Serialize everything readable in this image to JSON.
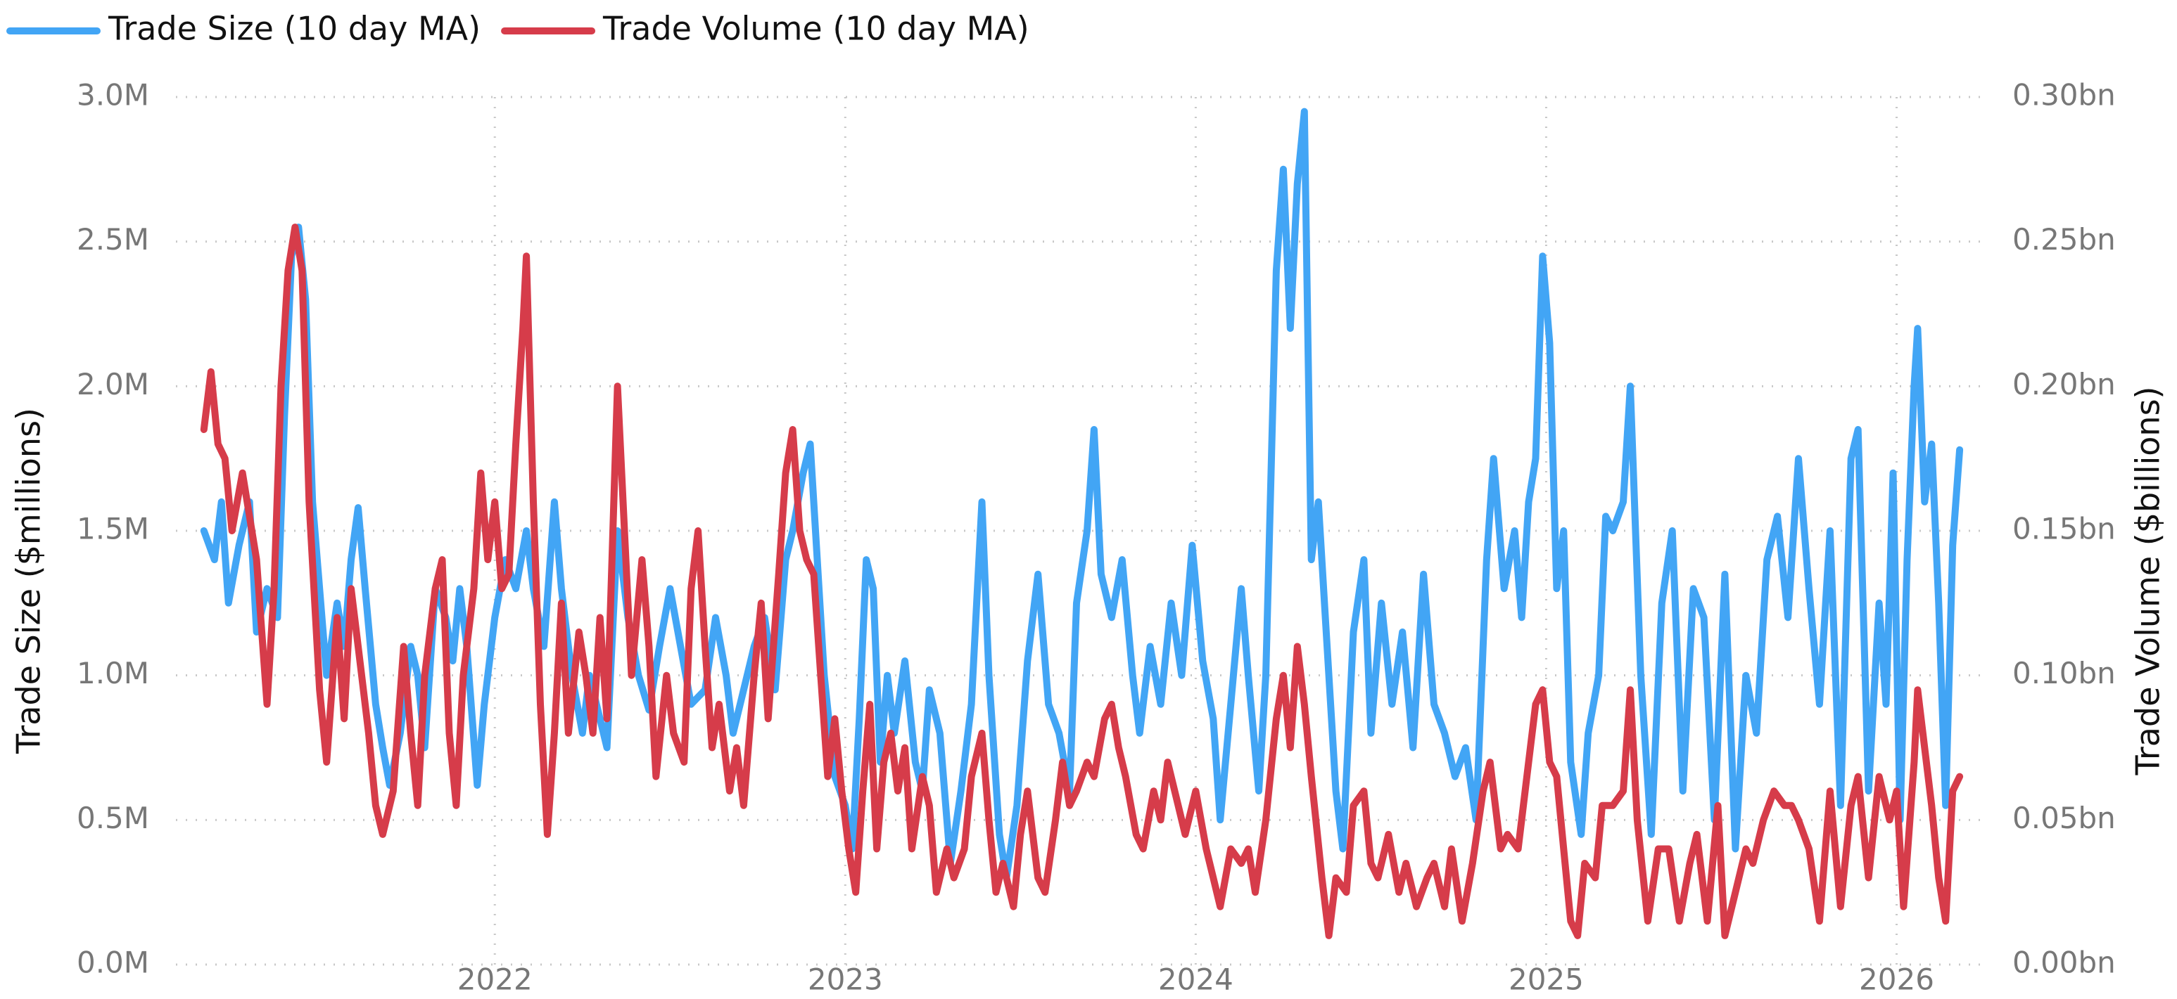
{
  "chart_data": {
    "type": "line",
    "y_label": "Trade Size ($millions)",
    "y2_label": "Trade Volume ($billions)",
    "legend": "top-left",
    "grid": true,
    "xlim": [
      2021.09,
      2026.25
    ],
    "xticks": [
      2022,
      2023,
      2024,
      2025,
      2026
    ],
    "ylim": [
      0,
      3.0
    ],
    "yticks": [
      {
        "value": 0,
        "label": "0.0M"
      },
      {
        "value": 0.5,
        "label": "0.5M"
      },
      {
        "value": 1.0,
        "label": "1.0M"
      },
      {
        "value": 1.5,
        "label": "1.5M"
      },
      {
        "value": 2.0,
        "label": "2.0M"
      },
      {
        "value": 2.5,
        "label": "2.5M"
      },
      {
        "value": 3.0,
        "label": "3.0M"
      }
    ],
    "y2lim": [
      0,
      0.3
    ],
    "y2ticks": [
      {
        "value": 0,
        "label": "0.00bn"
      },
      {
        "value": 0.05,
        "label": "0.05bn"
      },
      {
        "value": 0.1,
        "label": "0.10bn"
      },
      {
        "value": 0.15,
        "label": "0.15bn"
      },
      {
        "value": 0.2,
        "label": "0.20bn"
      },
      {
        "value": 0.25,
        "label": "0.25bn"
      },
      {
        "value": 0.3,
        "label": "0.30bn"
      }
    ],
    "series": [
      {
        "name": "Trade Size (10 day MA)",
        "color": "#42a5f5",
        "axis": "y",
        "x": [
          2021.17,
          2021.2,
          2021.22,
          2021.24,
          2021.27,
          2021.3,
          2021.32,
          2021.35,
          2021.38,
          2021.4,
          2021.42,
          2021.44,
          2021.46,
          2021.48,
          2021.5,
          2021.52,
          2021.55,
          2021.57,
          2021.59,
          2021.61,
          2021.63,
          2021.66,
          2021.68,
          2021.7,
          2021.73,
          2021.76,
          2021.78,
          2021.8,
          2021.83,
          2021.86,
          2021.88,
          2021.9,
          2021.92,
          2021.95,
          2021.97,
          2022.0,
          2022.03,
          2022.06,
          2022.09,
          2022.11,
          2022.14,
          2022.17,
          2022.19,
          2022.22,
          2022.25,
          2022.27,
          2022.3,
          2022.32,
          2022.35,
          2022.38,
          2022.41,
          2022.44,
          2022.47,
          2022.5,
          2022.53,
          2022.56,
          2022.6,
          2022.63,
          2022.66,
          2022.68,
          2022.71,
          2022.74,
          2022.77,
          2022.8,
          2022.83,
          2022.85,
          2022.88,
          2022.9,
          2022.92,
          2022.94,
          2022.97,
          2023.0,
          2023.02,
          2023.04,
          2023.06,
          2023.08,
          2023.1,
          2023.12,
          2023.14,
          2023.17,
          2023.2,
          2023.22,
          2023.24,
          2023.27,
          2023.3,
          2023.33,
          2023.36,
          2023.39,
          2023.41,
          2023.44,
          2023.46,
          2023.49,
          2023.52,
          2023.55,
          2023.58,
          2023.61,
          2023.64,
          2023.66,
          2023.69,
          2023.71,
          2023.73,
          2023.76,
          2023.79,
          2023.82,
          2023.84,
          2023.87,
          2023.9,
          2023.93,
          2023.96,
          2023.99,
          2024.02,
          2024.05,
          2024.07,
          2024.1,
          2024.13,
          2024.15,
          2024.18,
          2024.2,
          2024.23,
          2024.25,
          2024.27,
          2024.29,
          2024.31,
          2024.33,
          2024.35,
          2024.37,
          2024.4,
          2024.42,
          2024.45,
          2024.48,
          2024.5,
          2024.53,
          2024.56,
          2024.59,
          2024.62,
          2024.65,
          2024.68,
          2024.71,
          2024.74,
          2024.77,
          2024.8,
          2024.83,
          2024.85,
          2024.88,
          2024.91,
          2024.93,
          2024.95,
          2024.97,
          2024.99,
          2025.01,
          2025.03,
          2025.05,
          2025.07,
          2025.1,
          2025.12,
          2025.15,
          2025.17,
          2025.19,
          2025.22,
          2025.24,
          2025.27,
          2025.3,
          2025.33,
          2025.36,
          2025.39,
          2025.42,
          2025.45,
          2025.48,
          2025.51,
          2025.54,
          2025.57,
          2025.6,
          2025.63,
          2025.66,
          2025.69,
          2025.72,
          2025.75,
          2025.78,
          2025.81,
          2025.84,
          2025.87,
          2025.89,
          2025.92,
          2025.95,
          2025.97,
          2025.99,
          2026.01,
          2026.03,
          2026.05,
          2026.06,
          2026.08,
          2026.1,
          2026.12,
          2026.14,
          2026.16,
          2026.18
        ],
        "values": [
          1.5,
          1.4,
          1.6,
          1.25,
          1.45,
          1.6,
          1.15,
          1.3,
          1.2,
          1.9,
          2.45,
          2.55,
          2.3,
          1.6,
          1.3,
          1.0,
          1.25,
          1.1,
          1.4,
          1.58,
          1.3,
          0.9,
          0.75,
          0.62,
          0.8,
          1.1,
          1.0,
          0.75,
          1.3,
          1.2,
          1.05,
          1.3,
          1.1,
          0.62,
          0.9,
          1.2,
          1.4,
          1.3,
          1.5,
          1.3,
          1.1,
          1.6,
          1.3,
          1.0,
          0.8,
          1.0,
          0.85,
          0.75,
          1.5,
          1.2,
          1.0,
          0.88,
          1.1,
          1.3,
          1.1,
          0.9,
          0.95,
          1.2,
          1.0,
          0.8,
          0.95,
          1.1,
          1.2,
          0.95,
          1.4,
          1.5,
          1.7,
          1.8,
          1.4,
          1.0,
          0.65,
          0.55,
          0.4,
          0.85,
          1.4,
          1.3,
          0.7,
          1.0,
          0.8,
          1.05,
          0.7,
          0.6,
          0.95,
          0.8,
          0.35,
          0.6,
          0.9,
          1.6,
          1.0,
          0.45,
          0.3,
          0.55,
          1.05,
          1.35,
          0.9,
          0.8,
          0.6,
          1.25,
          1.5,
          1.85,
          1.35,
          1.2,
          1.4,
          1.0,
          0.8,
          1.1,
          0.9,
          1.25,
          1.0,
          1.45,
          1.05,
          0.85,
          0.5,
          0.9,
          1.3,
          1.0,
          0.6,
          1.0,
          2.4,
          2.75,
          2.2,
          2.7,
          2.95,
          1.4,
          1.6,
          1.2,
          0.6,
          0.4,
          1.15,
          1.4,
          0.8,
          1.25,
          0.9,
          1.15,
          0.75,
          1.35,
          0.9,
          0.8,
          0.65,
          0.75,
          0.5,
          1.4,
          1.75,
          1.3,
          1.5,
          1.2,
          1.6,
          1.75,
          2.45,
          2.15,
          1.3,
          1.5,
          0.7,
          0.45,
          0.8,
          1.0,
          1.55,
          1.5,
          1.6,
          2.0,
          1.0,
          0.45,
          1.25,
          1.5,
          0.6,
          1.3,
          1.2,
          0.5,
          1.35,
          0.4,
          1.0,
          0.8,
          1.4,
          1.55,
          1.2,
          1.75,
          1.3,
          0.9,
          1.5,
          0.55,
          1.75,
          1.85,
          0.6,
          1.25,
          0.9,
          1.7,
          0.5,
          1.4,
          2.0,
          2.2,
          1.6,
          1.8,
          1.25,
          0.55,
          1.45,
          1.78
        ]
      },
      {
        "name": "Trade Volume (10 day MA)",
        "color": "#d63c4a",
        "axis": "y2",
        "x": [
          2021.17,
          2021.19,
          2021.21,
          2021.23,
          2021.25,
          2021.28,
          2021.3,
          2021.32,
          2021.35,
          2021.37,
          2021.39,
          2021.41,
          2021.43,
          2021.45,
          2021.47,
          2021.5,
          2021.52,
          2021.55,
          2021.57,
          2021.59,
          2021.61,
          2021.64,
          2021.66,
          2021.68,
          2021.71,
          2021.74,
          2021.76,
          2021.78,
          2021.8,
          2021.83,
          2021.85,
          2021.87,
          2021.89,
          2021.91,
          2021.94,
          2021.96,
          2021.98,
          2022.0,
          2022.02,
          2022.04,
          2022.06,
          2022.08,
          2022.09,
          2022.11,
          2022.13,
          2022.15,
          2022.17,
          2022.19,
          2022.21,
          2022.24,
          2022.26,
          2022.28,
          2022.3,
          2022.32,
          2022.35,
          2022.37,
          2022.39,
          2022.42,
          2022.44,
          2022.46,
          2022.49,
          2022.51,
          2022.54,
          2022.56,
          2022.58,
          2022.6,
          2022.62,
          2022.64,
          2022.67,
          2022.69,
          2022.71,
          2022.74,
          2022.76,
          2022.78,
          2022.81,
          2022.83,
          2022.85,
          2022.87,
          2022.89,
          2022.91,
          2022.93,
          2022.95,
          2022.97,
          2022.99,
          2023.01,
          2023.03,
          2023.05,
          2023.07,
          2023.09,
          2023.11,
          2023.13,
          2023.15,
          2023.17,
          2023.19,
          2023.22,
          2023.24,
          2023.26,
          2023.29,
          2023.31,
          2023.34,
          2023.36,
          2023.39,
          2023.41,
          2023.43,
          2023.45,
          2023.48,
          2023.5,
          2023.52,
          2023.55,
          2023.57,
          2023.6,
          2023.62,
          2023.64,
          2023.66,
          2023.69,
          2023.71,
          2023.74,
          2023.76,
          2023.78,
          2023.8,
          2023.83,
          2023.85,
          2023.88,
          2023.9,
          2023.92,
          2023.95,
          2023.97,
          2024.0,
          2024.03,
          2024.05,
          2024.07,
          2024.1,
          2024.13,
          2024.15,
          2024.17,
          2024.2,
          2024.23,
          2024.25,
          2024.27,
          2024.29,
          2024.31,
          2024.33,
          2024.36,
          2024.38,
          2024.4,
          2024.43,
          2024.45,
          2024.48,
          2024.5,
          2024.52,
          2024.55,
          2024.58,
          2024.6,
          2024.63,
          2024.66,
          2024.68,
          2024.71,
          2024.73,
          2024.76,
          2024.79,
          2024.82,
          2024.84,
          2024.87,
          2024.89,
          2024.92,
          2024.95,
          2024.97,
          2024.99,
          2025.01,
          2025.03,
          2025.05,
          2025.07,
          2025.09,
          2025.11,
          2025.14,
          2025.16,
          2025.19,
          2025.22,
          2025.24,
          2025.26,
          2025.29,
          2025.32,
          2025.35,
          2025.38,
          2025.41,
          2025.43,
          2025.46,
          2025.49,
          2025.51,
          2025.54,
          2025.57,
          2025.59,
          2025.62,
          2025.65,
          2025.68,
          2025.7,
          2025.72,
          2025.75,
          2025.78,
          2025.81,
          2025.84,
          2025.87,
          2025.89,
          2025.92,
          2025.95,
          2025.98,
          2026.0,
          2026.02,
          2026.05,
          2026.06,
          2026.08,
          2026.1,
          2026.12,
          2026.14,
          2026.16,
          2026.18
        ],
        "values": [
          0.185,
          0.205,
          0.18,
          0.175,
          0.15,
          0.17,
          0.155,
          0.14,
          0.09,
          0.13,
          0.2,
          0.24,
          0.255,
          0.24,
          0.16,
          0.095,
          0.07,
          0.12,
          0.085,
          0.13,
          0.11,
          0.08,
          0.055,
          0.045,
          0.06,
          0.11,
          0.08,
          0.055,
          0.1,
          0.13,
          0.14,
          0.08,
          0.055,
          0.1,
          0.13,
          0.17,
          0.14,
          0.16,
          0.13,
          0.135,
          0.18,
          0.22,
          0.245,
          0.16,
          0.09,
          0.045,
          0.08,
          0.125,
          0.08,
          0.115,
          0.1,
          0.08,
          0.12,
          0.085,
          0.2,
          0.15,
          0.1,
          0.14,
          0.11,
          0.065,
          0.1,
          0.08,
          0.07,
          0.13,
          0.15,
          0.11,
          0.075,
          0.09,
          0.06,
          0.075,
          0.055,
          0.1,
          0.125,
          0.085,
          0.135,
          0.17,
          0.185,
          0.15,
          0.14,
          0.135,
          0.1,
          0.065,
          0.085,
          0.06,
          0.04,
          0.025,
          0.06,
          0.09,
          0.04,
          0.07,
          0.08,
          0.06,
          0.075,
          0.04,
          0.065,
          0.055,
          0.025,
          0.04,
          0.03,
          0.04,
          0.065,
          0.08,
          0.05,
          0.025,
          0.035,
          0.02,
          0.045,
          0.06,
          0.03,
          0.025,
          0.05,
          0.07,
          0.055,
          0.06,
          0.07,
          0.065,
          0.085,
          0.09,
          0.075,
          0.065,
          0.045,
          0.04,
          0.06,
          0.05,
          0.07,
          0.055,
          0.045,
          0.06,
          0.04,
          0.03,
          0.02,
          0.04,
          0.035,
          0.04,
          0.025,
          0.05,
          0.085,
          0.1,
          0.075,
          0.11,
          0.09,
          0.065,
          0.03,
          0.01,
          0.03,
          0.025,
          0.055,
          0.06,
          0.035,
          0.03,
          0.045,
          0.025,
          0.035,
          0.02,
          0.03,
          0.035,
          0.02,
          0.04,
          0.015,
          0.035,
          0.06,
          0.07,
          0.04,
          0.045,
          0.04,
          0.07,
          0.09,
          0.095,
          0.07,
          0.065,
          0.04,
          0.015,
          0.01,
          0.035,
          0.03,
          0.055,
          0.055,
          0.06,
          0.095,
          0.05,
          0.015,
          0.04,
          0.04,
          0.015,
          0.035,
          0.045,
          0.015,
          0.055,
          0.01,
          0.025,
          0.04,
          0.035,
          0.05,
          0.06,
          0.055,
          0.055,
          0.05,
          0.04,
          0.015,
          0.06,
          0.02,
          0.055,
          0.065,
          0.03,
          0.065,
          0.05,
          0.06,
          0.02,
          0.07,
          0.095,
          0.075,
          0.055,
          0.03,
          0.015,
          0.06,
          0.065
        ]
      }
    ]
  }
}
